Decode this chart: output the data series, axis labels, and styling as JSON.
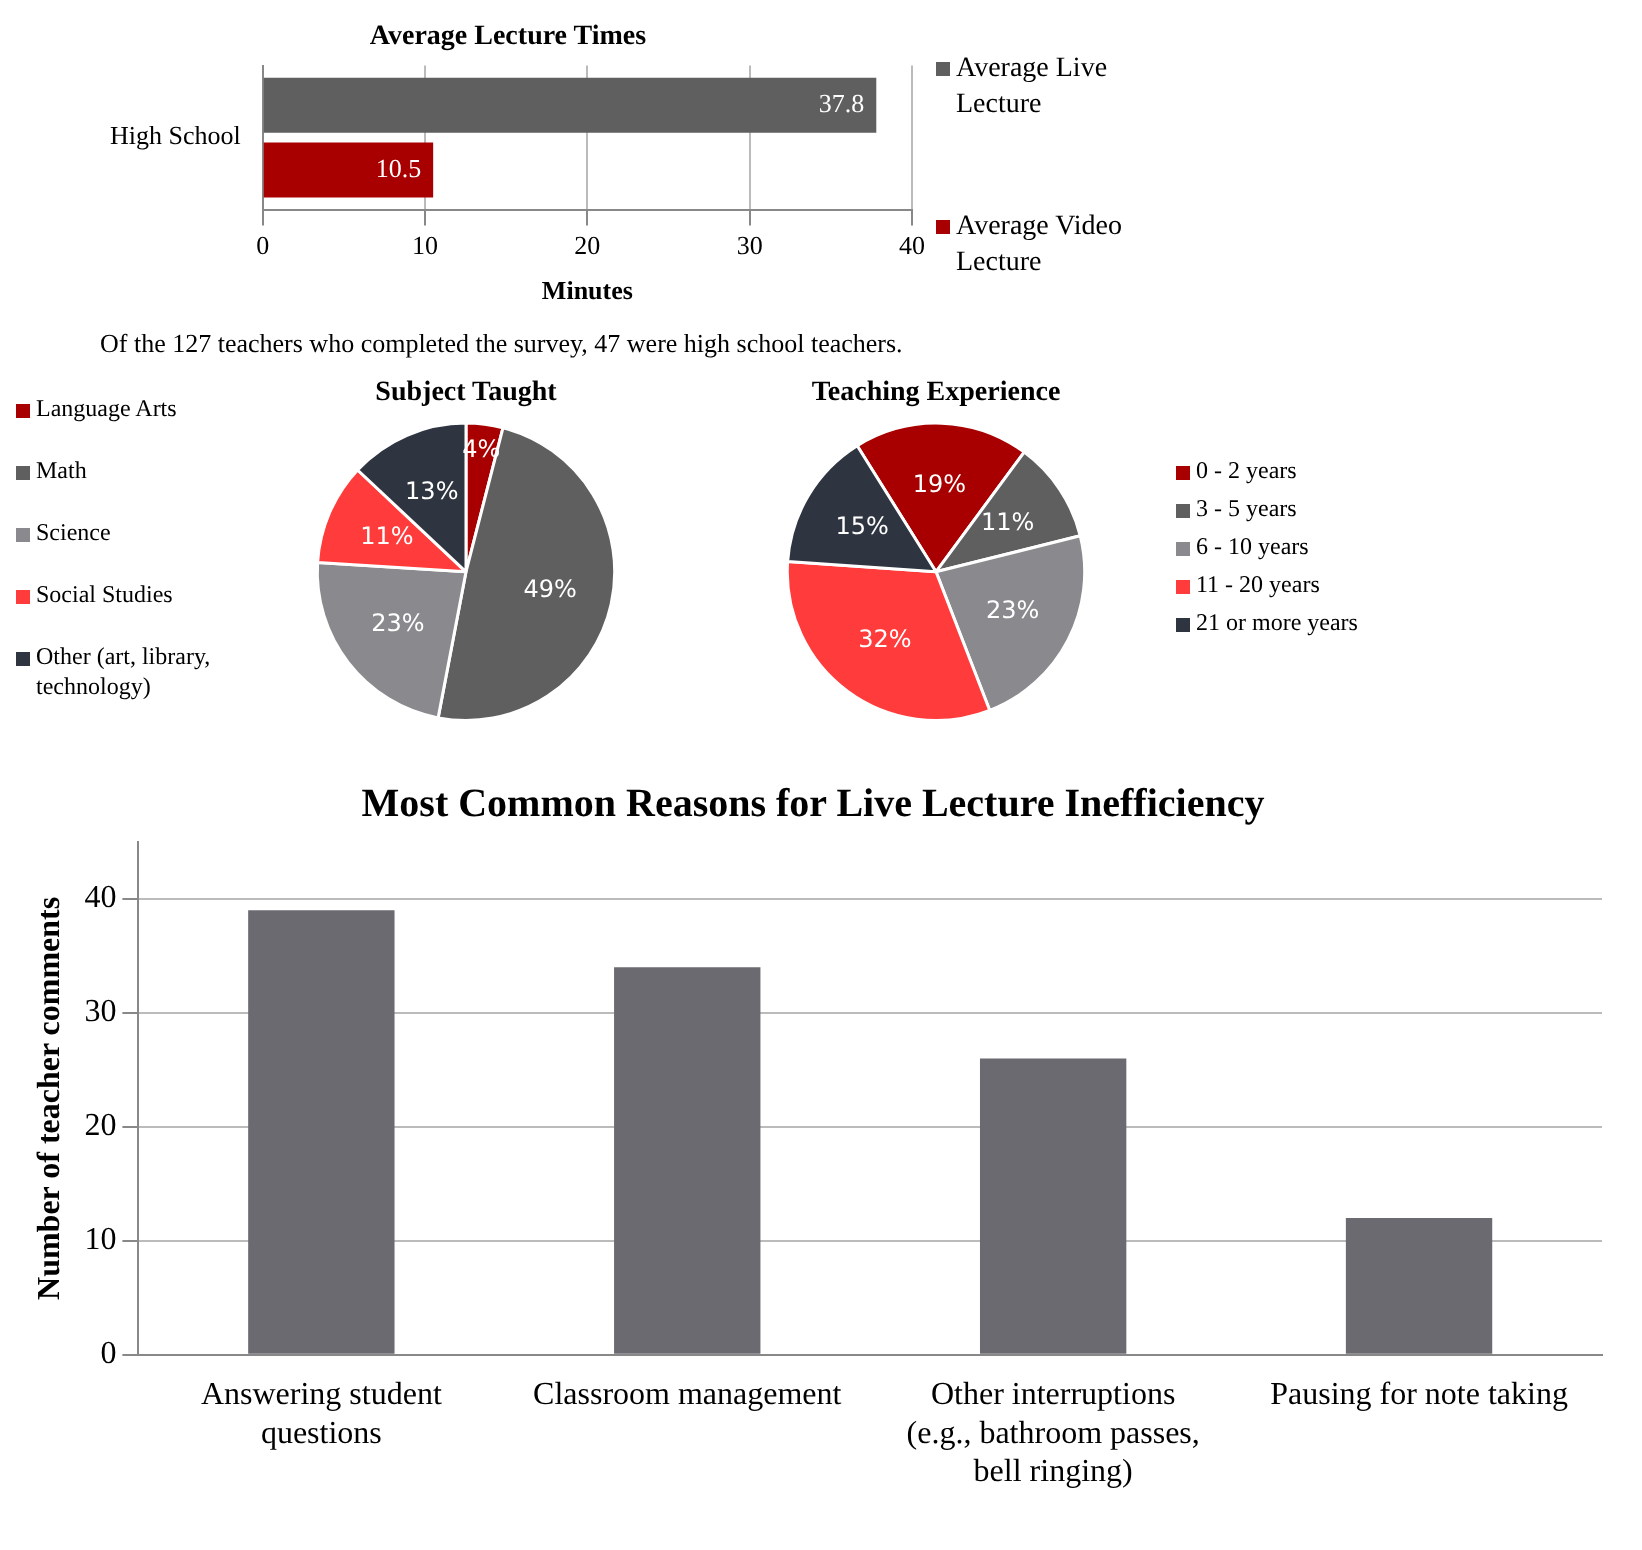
{
  "chart_data": [
    {
      "type": "bar",
      "title": "Average Lecture Times",
      "orientation": "horizontal",
      "categories": [
        "High School"
      ],
      "series": [
        {
          "name": "Average Live Lecture",
          "color": "#5f5f5f",
          "values": [
            37.8
          ]
        },
        {
          "name": "Average Video Lecture",
          "color": "#a80000",
          "values": [
            10.5
          ]
        }
      ],
      "xlim": [
        0,
        40
      ],
      "xticks": [
        0,
        10,
        20,
        30,
        40
      ],
      "xlabel": "Minutes",
      "grid": "x",
      "legend": "right",
      "data_labels": true,
      "annotations": [
        "Of the 127 teachers who completed the survey, 47 were high school teachers."
      ]
    },
    {
      "type": "pie",
      "title": "Subject Taught",
      "categories": [
        "Language Arts",
        "Math",
        "Science",
        "Social Studies",
        "Other (art, library, technology)"
      ],
      "values": [
        4,
        49,
        23,
        11,
        13
      ],
      "colors": [
        "#a80000",
        "#5f5f5f",
        "#8a8a8e",
        "#ff3b3b",
        "#2e3440"
      ],
      "value_labels": [
        "4%",
        "49%",
        "23%",
        "11%",
        "13%"
      ],
      "legend": "left"
    },
    {
      "type": "pie",
      "title": "Teaching Experience",
      "categories": [
        "0 - 2 years",
        "3 - 5 years",
        "6 - 10 years",
        "11 - 20 years",
        "21 or more years"
      ],
      "values": [
        19,
        11,
        23,
        32,
        15
      ],
      "colors": [
        "#a80000",
        "#5f5f5f",
        "#8a8a8e",
        "#ff3b3b",
        "#2e3440"
      ],
      "value_labels": [
        "19%",
        "11%",
        "23%",
        "32%",
        "15%"
      ],
      "legend": "right"
    },
    {
      "type": "bar",
      "title": "Most Common Reasons for Live Lecture Inefficiency",
      "categories": [
        "Answering student questions",
        "Classroom management",
        "Other interruptions (e.g., bathroom passes, bell ringing)",
        "Pausing for note taking"
      ],
      "values": [
        39,
        34,
        26,
        12
      ],
      "color": "#6a6a70",
      "ylim": [
        0,
        45
      ],
      "yticks": [
        0,
        10,
        20,
        30,
        40
      ],
      "ylabel": "Number of teacher comments",
      "grid": "y"
    }
  ]
}
